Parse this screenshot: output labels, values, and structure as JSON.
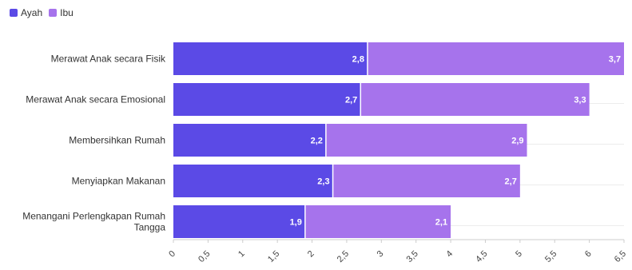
{
  "legend": {
    "items": [
      {
        "label": "Ayah",
        "color": "#5b4ae6"
      },
      {
        "label": "Ibu",
        "color": "#a673ec"
      }
    ]
  },
  "chart_data": {
    "type": "bar",
    "orientation": "horizontal",
    "stacked": true,
    "categories": [
      "Merawat Anak secara Fisik",
      "Merawat Anak secara Emosional",
      "Membersihkan Rumah",
      "Menyiapkan Makanan",
      "Menangani Perlengkapan Rumah Tangga"
    ],
    "series": [
      {
        "name": "Ayah",
        "values": [
          2.8,
          2.7,
          2.2,
          2.3,
          1.9
        ],
        "color": "#5b4ae6"
      },
      {
        "name": "Ibu",
        "values": [
          3.7,
          3.3,
          2.9,
          2.7,
          2.1
        ],
        "color": "#a673ec"
      }
    ],
    "value_labels": {
      "Ayah": [
        "2,8",
        "2,7",
        "2,2",
        "2,3",
        "1,9"
      ],
      "Ibu": [
        "3,7",
        "3,3",
        "2,9",
        "2,7",
        "2,1"
      ]
    },
    "xlim": [
      0,
      6.5
    ],
    "xticks": [
      0,
      0.5,
      1,
      1.5,
      2,
      2.5,
      3,
      3.5,
      4,
      4.5,
      5,
      5.5,
      6,
      6.5
    ],
    "xtick_labels": [
      "0",
      "0,5",
      "1",
      "1,5",
      "2",
      "2,5",
      "3",
      "3,5",
      "4",
      "4,5",
      "5",
      "5,5",
      "6",
      "6,5"
    ],
    "grid": true,
    "legend_position": "top-left",
    "title": "",
    "xlabel": "",
    "ylabel": ""
  }
}
